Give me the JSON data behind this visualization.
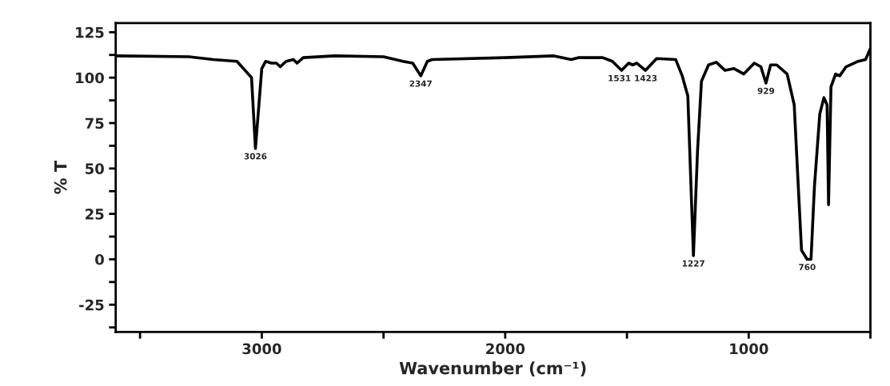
{
  "chart_data": {
    "type": "line",
    "xlabel": "Wavenumber (cm⁻¹)",
    "ylabel": "% T",
    "xlim": [
      3600,
      500
    ],
    "xticks": [
      {
        "value": 3500,
        "label": null
      },
      3000,
      {
        "value": 2500,
        "label": null
      },
      2000,
      {
        "value": 1500,
        "label": null
      },
      1000,
      {
        "value": 500,
        "label": null
      }
    ],
    "ylim": [
      -40,
      130
    ],
    "yticks": [
      {
        "value": -37.5,
        "label": null
      },
      -25,
      {
        "value": -12.5,
        "label": null
      },
      0,
      {
        "value": 12.5,
        "label": null
      },
      25,
      {
        "value": 37.5,
        "label": null
      },
      50,
      {
        "value": 62.5,
        "label": null
      },
      75,
      {
        "value": 87.5,
        "label": null
      },
      100,
      {
        "value": 112.5,
        "label": null
      },
      125
    ],
    "grid": false,
    "legend": false,
    "marker": "none",
    "line_style": "solid",
    "series": [
      {
        "color": "#000000",
        "x": [
          3600,
          3300,
          3200,
          3102,
          3042,
          3026,
          3000,
          2984,
          2960,
          2940,
          2924,
          2900,
          2870,
          2855,
          2830,
          2700,
          2500,
          2420,
          2380,
          2347,
          2320,
          2300,
          2000,
          1800,
          1729,
          1700,
          1600,
          1560,
          1522,
          1493,
          1476,
          1460,
          1424,
          1378,
          1300,
          1273,
          1250,
          1227,
          1210,
          1194,
          1165,
          1133,
          1097,
          1060,
          1020,
          977,
          950,
          929,
          910,
          885,
          842,
          813,
          800,
          783,
          760,
          744,
          730,
          708,
          691,
          678,
          672,
          662,
          643,
          626,
          600,
          550,
          520,
          500
        ],
        "values": [
          112,
          111.5,
          110,
          109,
          100,
          61,
          105,
          109,
          108,
          108,
          106,
          109,
          110,
          108,
          111,
          112,
          111.5,
          109,
          108,
          101,
          109,
          110,
          111,
          112,
          110,
          111,
          111,
          109,
          104,
          108,
          107,
          108,
          104,
          110.5,
          110,
          101,
          90,
          2,
          60,
          98,
          107,
          108.5,
          104,
          105,
          102,
          108,
          106,
          97,
          107,
          107,
          102,
          85,
          50,
          5,
          0,
          0,
          40,
          80,
          89,
          85,
          30,
          95,
          102,
          101,
          106,
          109,
          110,
          116
        ]
      }
    ],
    "annotations": [
      {
        "text": "3026",
        "x": 3026,
        "y": 61
      },
      {
        "text": "2347",
        "x": 2347,
        "y": 101
      },
      {
        "text": "1531",
        "x": 1531,
        "y": 104
      },
      {
        "text": "1423",
        "x": 1423,
        "y": 104
      },
      {
        "text": "1227",
        "x": 1227,
        "y": 2
      },
      {
        "text": "929",
        "x": 929,
        "y": 97
      },
      {
        "text": "760",
        "x": 760,
        "y": 0
      }
    ]
  }
}
